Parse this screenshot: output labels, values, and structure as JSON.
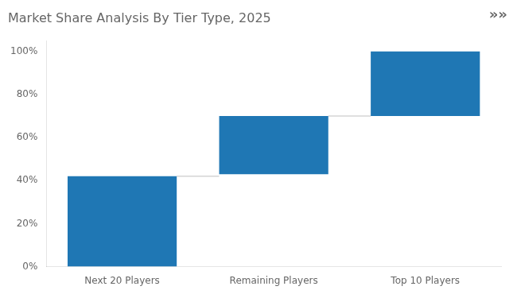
{
  "chart_data": {
    "type": "bar",
    "title": "Market Share Analysis By Tier Type, 2025",
    "categories": [
      "Next 20 Players",
      "Remaining Players",
      "Top 10 Players"
    ],
    "bottoms": [
      0,
      43,
      70
    ],
    "tops": [
      42,
      70,
      100
    ],
    "color": "#1f77b4",
    "ylim": [
      0,
      105
    ],
    "yticks": [
      {
        "value": 0,
        "label": "0%"
      },
      {
        "value": 20,
        "label": "20%"
      },
      {
        "value": 40,
        "label": "40%"
      },
      {
        "value": 60,
        "label": "60%"
      },
      {
        "value": 80,
        "label": "80%"
      },
      {
        "value": 100,
        "label": "100%"
      }
    ],
    "annotations": [
      "»»"
    ],
    "grid": false
  }
}
